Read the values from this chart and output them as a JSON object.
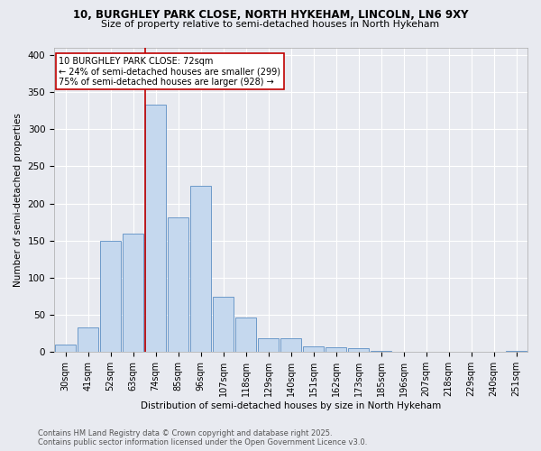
{
  "title1": "10, BURGHLEY PARK CLOSE, NORTH HYKEHAM, LINCOLN, LN6 9XY",
  "title2": "Size of property relative to semi-detached houses in North Hykeham",
  "xlabel": "Distribution of semi-detached houses by size in North Hykeham",
  "ylabel": "Number of semi-detached properties",
  "categories": [
    "30sqm",
    "41sqm",
    "52sqm",
    "63sqm",
    "74sqm",
    "85sqm",
    "96sqm",
    "107sqm",
    "118sqm",
    "129sqm",
    "140sqm",
    "151sqm",
    "162sqm",
    "173sqm",
    "185sqm",
    "196sqm",
    "207sqm",
    "218sqm",
    "229sqm",
    "240sqm",
    "251sqm"
  ],
  "values": [
    10,
    33,
    150,
    160,
    333,
    181,
    224,
    75,
    46,
    19,
    19,
    8,
    6,
    5,
    2,
    1,
    0,
    1,
    0,
    0,
    2
  ],
  "bar_color": "#c5d8ee",
  "bar_edge_color": "#5b8ec4",
  "bg_color": "#e8eaf0",
  "grid_color": "#ffffff",
  "property_line_color": "#c00000",
  "annotation_title": "10 BURGHLEY PARK CLOSE: 72sqm",
  "annotation_line1": "← 24% of semi-detached houses are smaller (299)",
  "annotation_line2": "75% of semi-detached houses are larger (928) →",
  "footer1": "Contains HM Land Registry data © Crown copyright and database right 2025.",
  "footer2": "Contains public sector information licensed under the Open Government Licence v3.0.",
  "ylim": [
    0,
    410
  ],
  "yticks": [
    0,
    50,
    100,
    150,
    200,
    250,
    300,
    350,
    400
  ]
}
